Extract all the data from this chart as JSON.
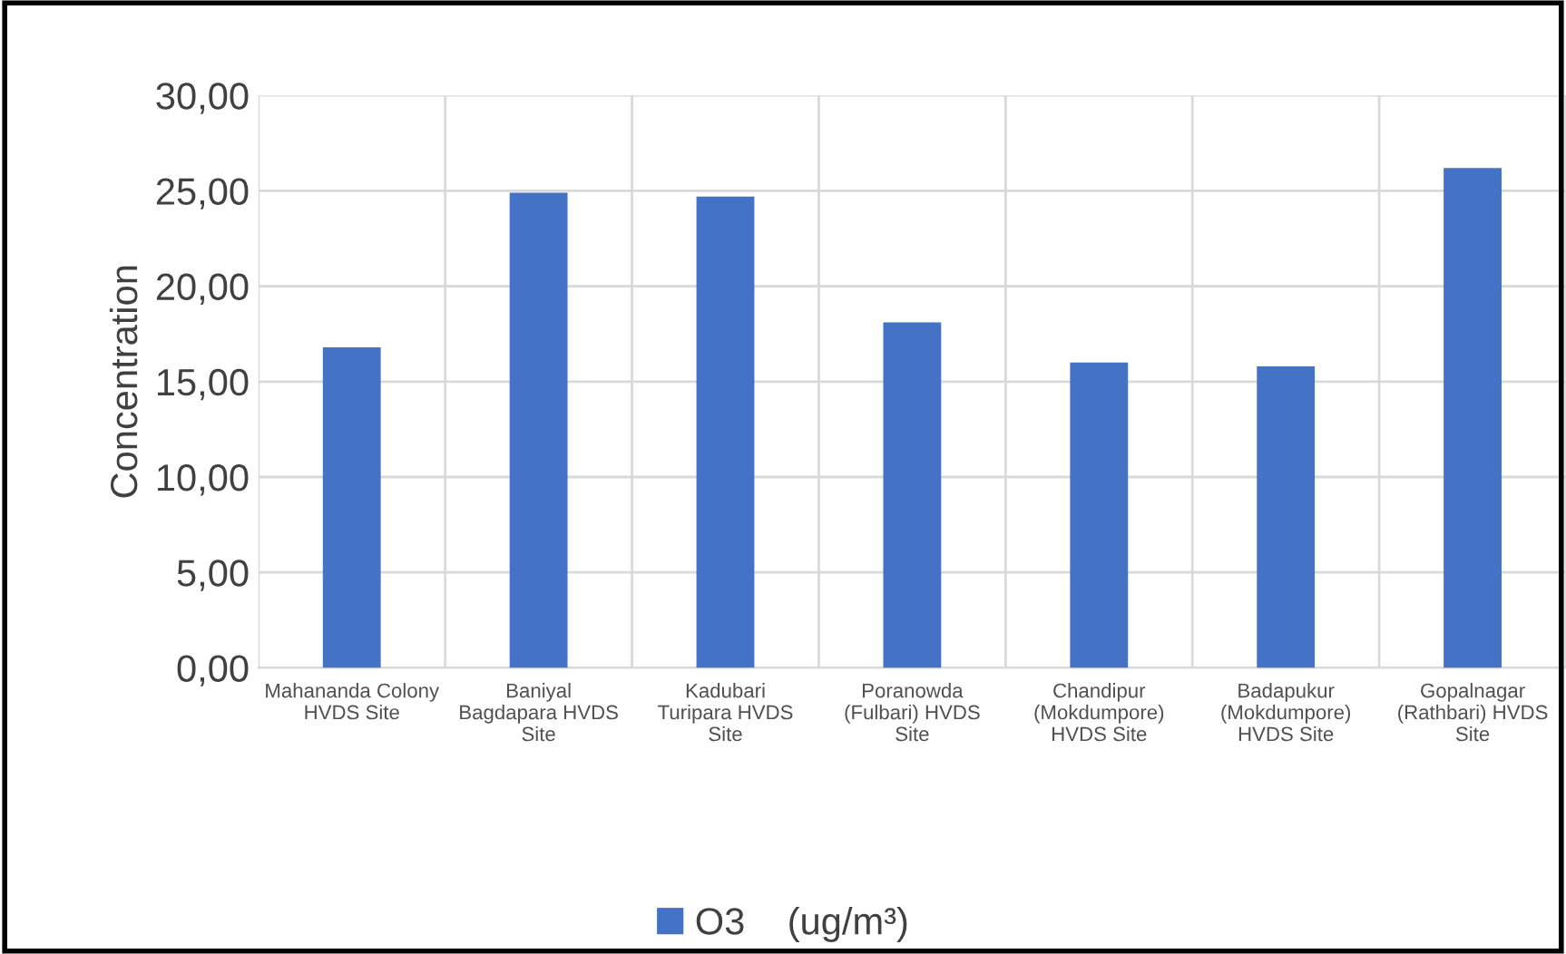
{
  "chart_data": {
    "type": "bar",
    "ylabel": "Concentration",
    "categories": [
      "Mahananda Colony HVDS Site",
      "Baniyal Bagdapara HVDS Site",
      "Kadubari Turipara HVDS Site",
      "Poranowda (Fulbari) HVDS Site",
      "Chandipur (Mokdumpore) HVDS Site",
      "Badapukur (Mokdumpore) HVDS Site",
      "Gopalnagar (Rathbari) HVDS Site"
    ],
    "series": [
      {
        "name": "O3    (ug/m³)",
        "color": "#4472c4",
        "values": [
          16.8,
          24.9,
          24.7,
          18.1,
          16.0,
          15.8,
          26.2
        ]
      }
    ],
    "ylim": [
      0,
      30
    ],
    "yticks": [
      {
        "value": 0,
        "label": "0,00"
      },
      {
        "value": 5,
        "label": "5,00"
      },
      {
        "value": 10,
        "label": "10,00"
      },
      {
        "value": 15,
        "label": "15,00"
      },
      {
        "value": 20,
        "label": "20,00"
      },
      {
        "value": 25,
        "label": "25,00"
      },
      {
        "value": 30,
        "label": "30,00"
      }
    ],
    "grid": true,
    "legend": "bottom"
  }
}
